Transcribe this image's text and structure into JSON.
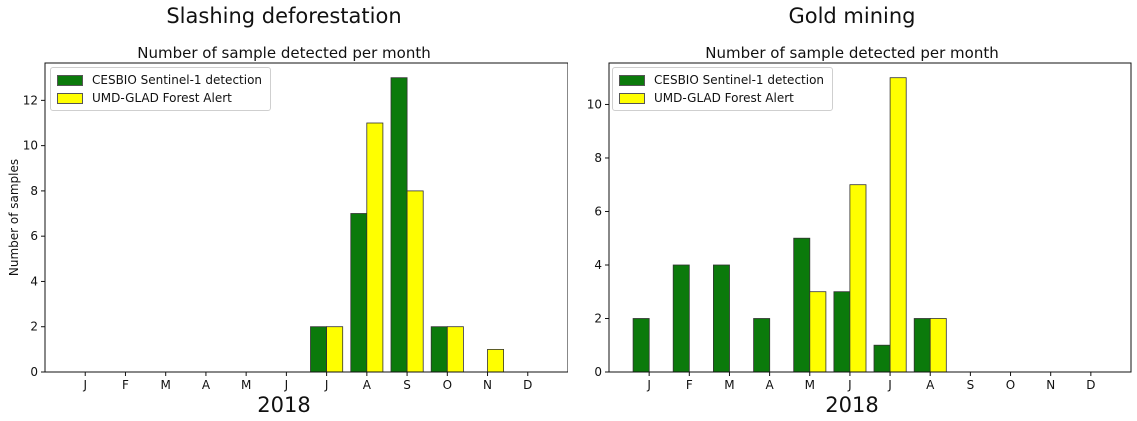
{
  "panels": [
    {
      "heading": "Slashing deforestation",
      "xlabel": "2018"
    },
    {
      "heading": "Gold mining",
      "xlabel": "2018"
    }
  ],
  "legend": {
    "series": [
      {
        "name": "CESBIO Sentinel-1 detection",
        "color": "#0b7a0b"
      },
      {
        "name": "UMD-GLAD Forest Alert",
        "color": "#ffff00"
      }
    ],
    "placement": "upper-left"
  },
  "chart_data": [
    {
      "type": "bar",
      "title": "Number of sample detected per month",
      "xlabel": "2018",
      "ylabel": "Number of samples",
      "categories": [
        "J",
        "F",
        "M",
        "A",
        "M",
        "J",
        "J",
        "A",
        "S",
        "O",
        "N",
        "D"
      ],
      "series": [
        {
          "name": "CESBIO Sentinel-1 detection",
          "color": "#0b7a0b",
          "values": [
            0,
            0,
            0,
            0,
            0,
            0,
            2,
            7,
            13,
            2,
            0,
            0
          ]
        },
        {
          "name": "UMD-GLAD Forest Alert",
          "color": "#ffff00",
          "values": [
            0,
            0,
            0,
            0,
            0,
            0,
            2,
            11,
            8,
            2,
            1,
            0
          ]
        }
      ],
      "ylim": [
        0,
        13.65
      ],
      "yticks": [
        0,
        2,
        4,
        6,
        8,
        10,
        12
      ],
      "grid": false,
      "legend": "upper-left"
    },
    {
      "type": "bar",
      "title": "Number of sample detected per month",
      "xlabel": "2018",
      "ylabel": "",
      "categories": [
        "J",
        "F",
        "M",
        "A",
        "M",
        "J",
        "J",
        "A",
        "S",
        "O",
        "N",
        "D"
      ],
      "series": [
        {
          "name": "CESBIO Sentinel-1 detection",
          "color": "#0b7a0b",
          "values": [
            2,
            4,
            4,
            2,
            5,
            3,
            1,
            2,
            0,
            0,
            0,
            0
          ]
        },
        {
          "name": "UMD-GLAD Forest Alert",
          "color": "#ffff00",
          "values": [
            0,
            0,
            0,
            0,
            3,
            7,
            11,
            2,
            0,
            0,
            0,
            0
          ]
        }
      ],
      "ylim": [
        0,
        11.55
      ],
      "yticks": [
        0,
        2,
        4,
        6,
        8,
        10
      ],
      "grid": false,
      "legend": "upper-left"
    }
  ]
}
